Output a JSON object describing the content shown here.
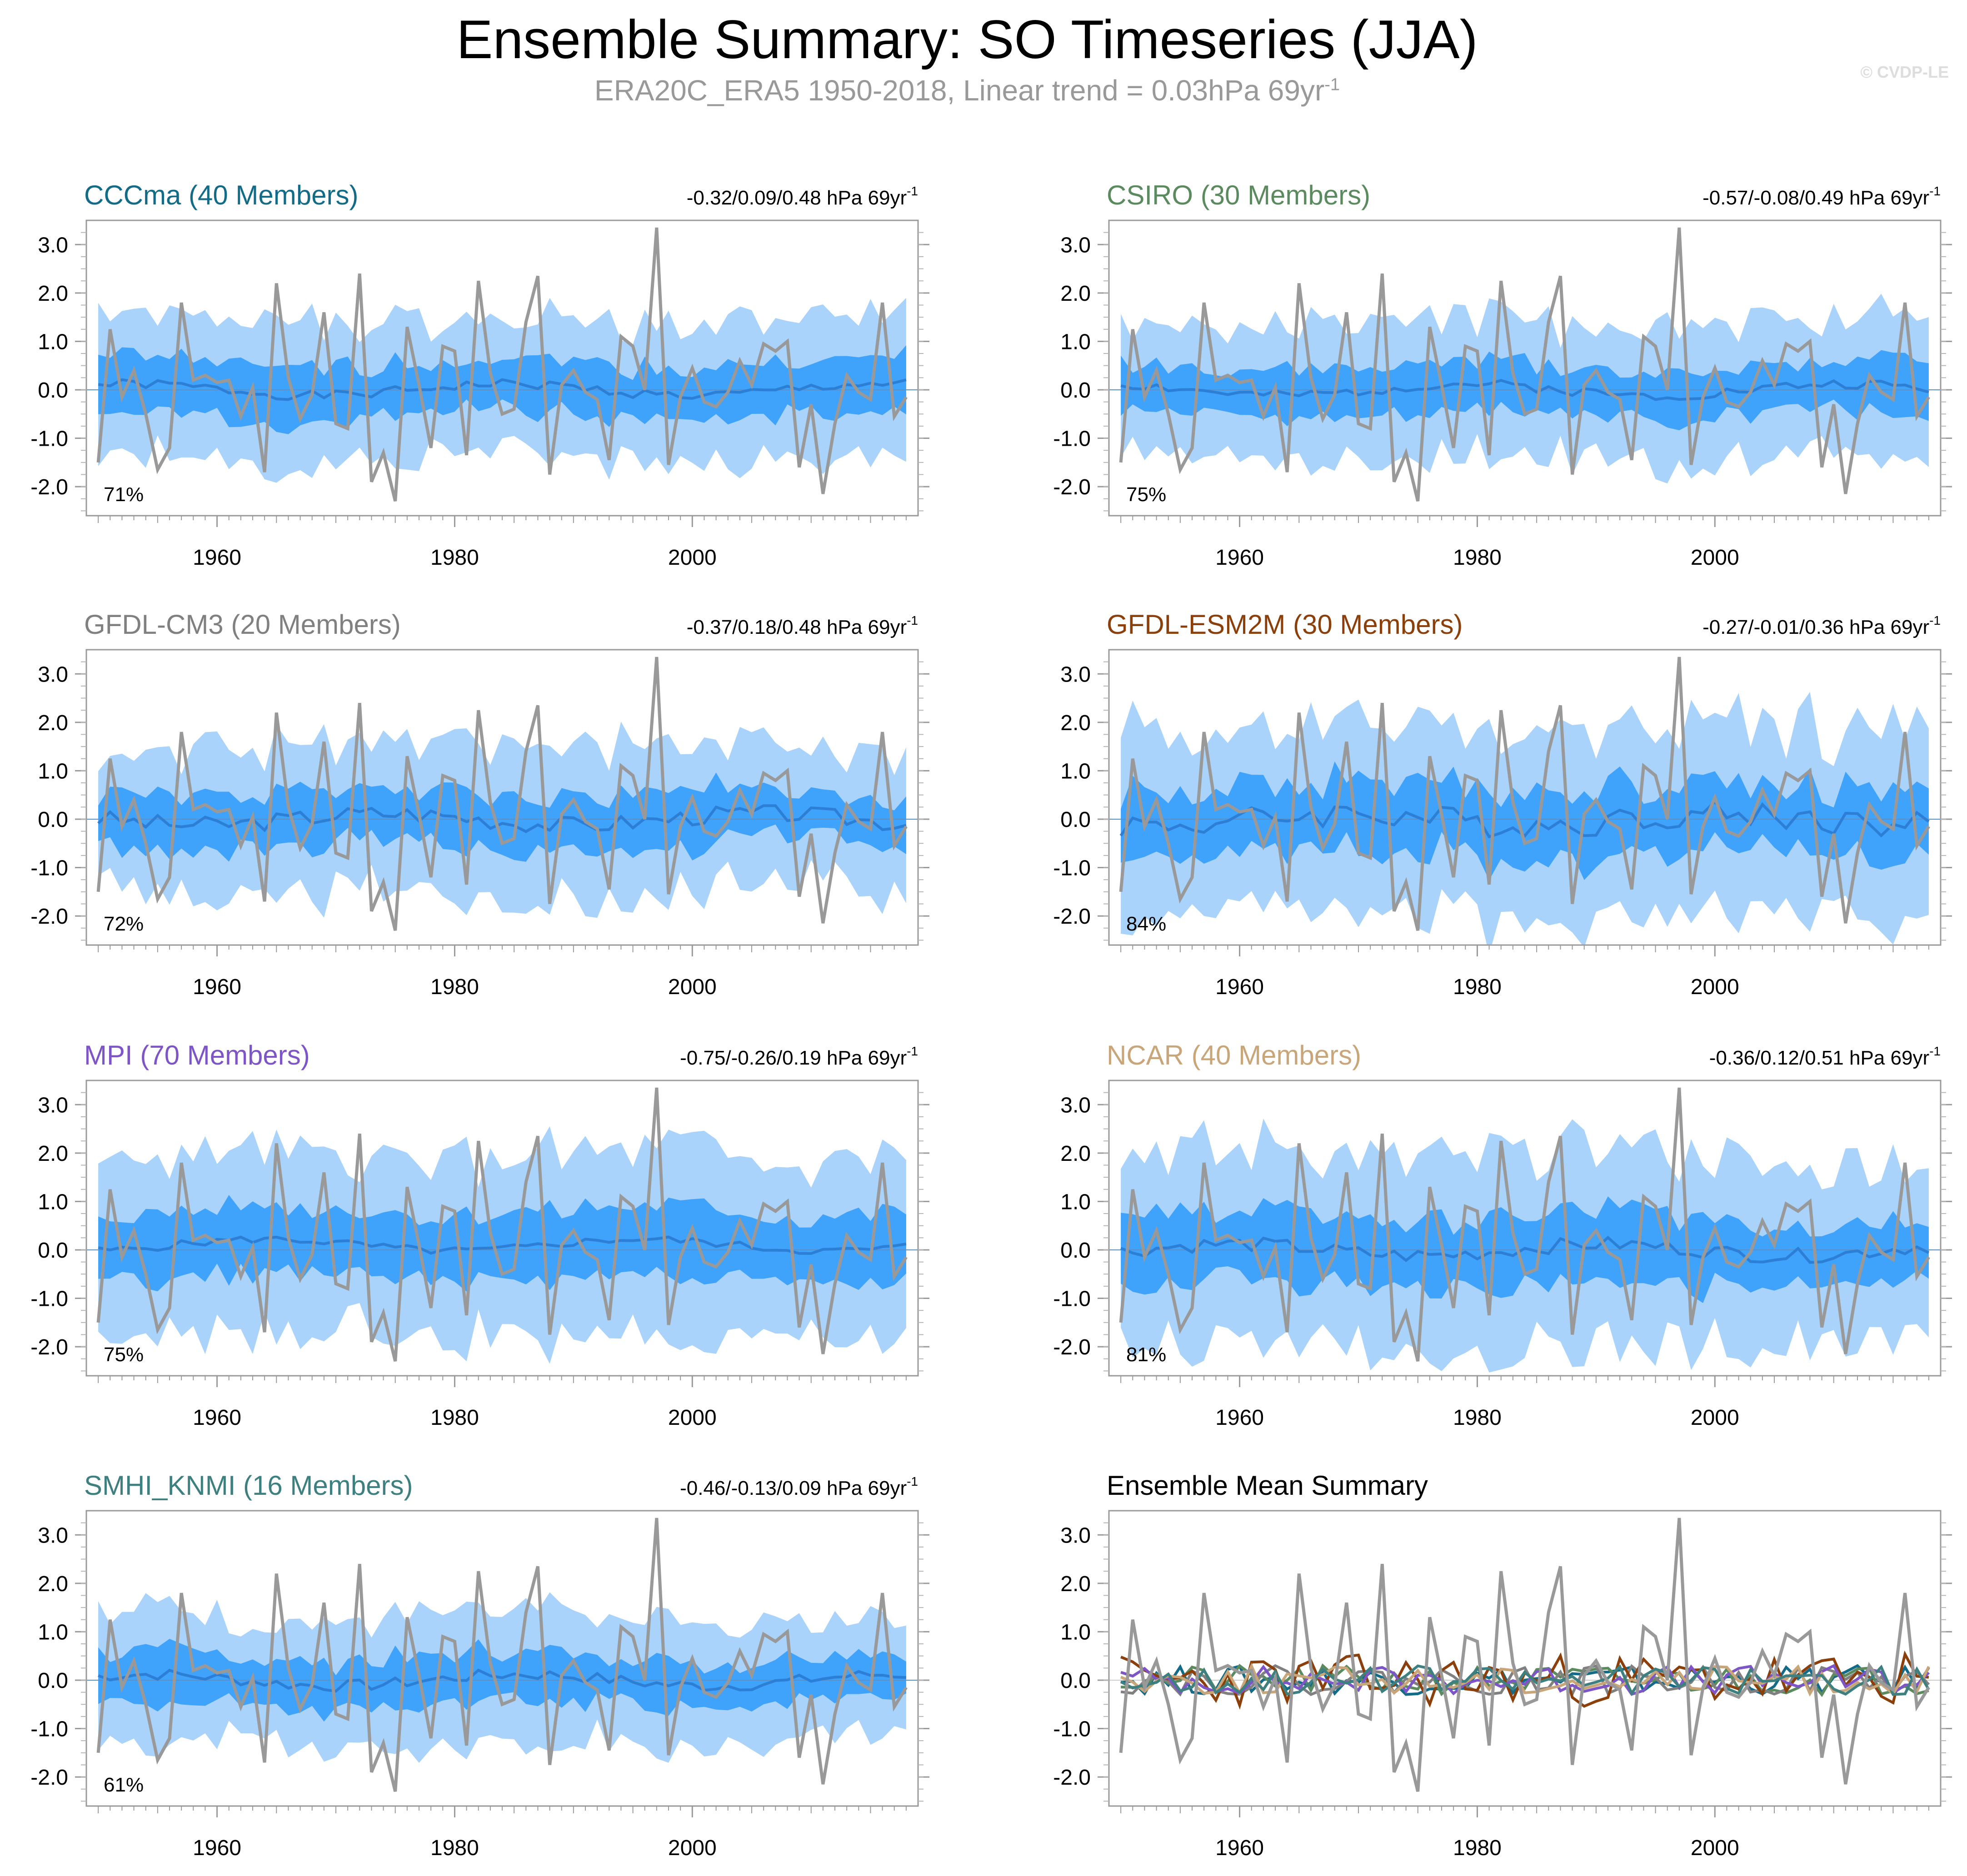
{
  "title": "Ensemble Summary: SO Timeseries (JJA)",
  "subtitle": "ERA20C_ERA5 1950-2018, Linear trend = 0.03hPa 69yr",
  "subtitle_sup": "-1",
  "watermark": "© CVDP-LE",
  "colors": {
    "obs": "#999999",
    "band_outer": "#a9d3fb",
    "band_inner": "#3fa2fb",
    "ens_mean": "#2c7fd4"
  },
  "chart_data": [
    {
      "type": "line",
      "name": "CCCma",
      "title": "CCCma (40 Members)",
      "title_color": "#136b87",
      "trend": "-0.32/0.09/0.48 hPa 69yr",
      "trend_sup": "-1",
      "pct": "71%",
      "ylim": [
        -2.6,
        3.5
      ],
      "xlim": [
        1949,
        2019
      ],
      "yticks": [
        "3.0",
        "2.0",
        "1.0",
        "0.0",
        "-1.0",
        "-2.0"
      ],
      "xticks": [
        "1960",
        "1980",
        "2000"
      ],
      "seed": 1,
      "level": 0.0,
      "amp": 0.1,
      "inner": 0.55,
      "outer": 1.05
    },
    {
      "type": "line",
      "name": "CSIRO",
      "title": "CSIRO (30 Members)",
      "title_color": "#5a8a5e",
      "trend": "-0.57/-0.08/0.49 hPa 69yr",
      "trend_sup": "-1",
      "pct": "75%",
      "ylim": [
        -2.6,
        3.5
      ],
      "xlim": [
        1949,
        2019
      ],
      "yticks": [
        "3.0",
        "2.0",
        "1.0",
        "0.0",
        "-1.0",
        "-2.0"
      ],
      "xticks": [
        "1960",
        "1980",
        "2000"
      ],
      "seed": 2,
      "level": 0.0,
      "amp": 0.1,
      "inner": 0.5,
      "outer": 1.05
    },
    {
      "type": "line",
      "name": "GFDL-CM3",
      "title": "GFDL-CM3 (20 Members)",
      "title_color": "#808080",
      "trend": "-0.37/0.18/0.48 hPa 69yr",
      "trend_sup": "-1",
      "pct": "72%",
      "ylim": [
        -2.6,
        3.5
      ],
      "xlim": [
        1949,
        2019
      ],
      "yticks": [
        "3.0",
        "2.0",
        "1.0",
        "0.0",
        "-1.0",
        "-2.0"
      ],
      "xticks": [
        "1960",
        "1980",
        "2000"
      ],
      "seed": 3,
      "level": 0.0,
      "amp": 0.18,
      "inner": 0.55,
      "outer": 1.15
    },
    {
      "type": "line",
      "name": "GFDL-ESM2M",
      "title": "GFDL-ESM2M (30 Members)",
      "title_color": "#8b3f0b",
      "trend": "-0.27/-0.01/0.36 hPa 69yr",
      "trend_sup": "-1",
      "pct": "84%",
      "ylim": [
        -2.6,
        3.5
      ],
      "xlim": [
        1949,
        2019
      ],
      "yticks": [
        "3.0",
        "2.0",
        "1.0",
        "0.0",
        "-1.0",
        "-2.0"
      ],
      "xticks": [
        "1960",
        "1980",
        "2000"
      ],
      "seed": 4,
      "level": 0.0,
      "amp": 0.28,
      "inner": 0.7,
      "outer": 1.45
    },
    {
      "type": "line",
      "name": "MPI",
      "title": "MPI (70 Members)",
      "title_color": "#7d55c7",
      "trend": "-0.75/-0.26/0.19 hPa 69yr",
      "trend_sup": "-1",
      "pct": "75%",
      "ylim": [
        -2.6,
        3.5
      ],
      "xlim": [
        1949,
        2019
      ],
      "yticks": [
        "3.0",
        "2.0",
        "1.0",
        "0.0",
        "-1.0",
        "-2.0"
      ],
      "xticks": [
        "1960",
        "1980",
        "2000"
      ],
      "seed": 5,
      "level": 0.1,
      "amp": 0.08,
      "inner": 0.7,
      "outer": 1.35
    },
    {
      "type": "line",
      "name": "NCAR",
      "title": "NCAR (40 Members)",
      "title_color": "#c9a57a",
      "trend": "-0.36/0.12/0.51 hPa 69yr",
      "trend_sup": "-1",
      "pct": "81%",
      "ylim": [
        -2.6,
        3.5
      ],
      "xlim": [
        1949,
        2019
      ],
      "yticks": [
        "3.0",
        "2.0",
        "1.0",
        "0.0",
        "-1.0",
        "-2.0"
      ],
      "xticks": [
        "1960",
        "1980",
        "2000"
      ],
      "seed": 6,
      "level": 0.0,
      "amp": 0.15,
      "inner": 0.7,
      "outer": 1.5
    },
    {
      "type": "line",
      "name": "SMHI_KNMI",
      "title": "SMHI_KNMI (16 Members)",
      "title_color": "#3e7f7f",
      "trend": "-0.46/-0.13/0.09 hPa 69yr",
      "trend_sup": "-1",
      "pct": "61%",
      "ylim": [
        -2.6,
        3.5
      ],
      "xlim": [
        1949,
        2019
      ],
      "yticks": [
        "3.0",
        "2.0",
        "1.0",
        "0.0",
        "-1.0",
        "-2.0"
      ],
      "xticks": [
        "1960",
        "1980",
        "2000"
      ],
      "seed": 7,
      "level": 0.0,
      "amp": 0.12,
      "inner": 0.5,
      "outer": 0.95
    },
    {
      "type": "line",
      "name": "Ensemble Mean Summary",
      "title": "Ensemble Mean Summary",
      "title_color": "#000000",
      "trend": "",
      "trend_sup": "",
      "pct": "",
      "ylim": [
        -2.6,
        3.5
      ],
      "xlim": [
        1949,
        2019
      ],
      "yticks": [
        "3.0",
        "2.0",
        "1.0",
        "0.0",
        "-1.0",
        "-2.0"
      ],
      "xticks": [
        "1960",
        "1980",
        "2000"
      ],
      "summary": true,
      "member_colors": [
        "#136b87",
        "#5a8a5e",
        "#808080",
        "#8b3f0b",
        "#7d55c7",
        "#c9a57a",
        "#3e7f7f"
      ]
    }
  ],
  "obs": {
    "name": "ERA20C_ERA5",
    "years": [
      1950,
      1951,
      1952,
      1953,
      1954,
      1955,
      1956,
      1957,
      1958,
      1959,
      1960,
      1961,
      1962,
      1963,
      1964,
      1965,
      1966,
      1967,
      1968,
      1969,
      1970,
      1971,
      1972,
      1973,
      1974,
      1975,
      1976,
      1977,
      1978,
      1979,
      1980,
      1981,
      1982,
      1983,
      1984,
      1985,
      1986,
      1987,
      1988,
      1989,
      1990,
      1991,
      1992,
      1993,
      1994,
      1995,
      1996,
      1997,
      1998,
      1999,
      2000,
      2001,
      2002,
      2003,
      2004,
      2005,
      2006,
      2007,
      2008,
      2009,
      2010,
      2011,
      2012,
      2013,
      2014,
      2015,
      2016,
      2017,
      2018
    ],
    "values": [
      -1.5,
      1.25,
      -0.15,
      0.4,
      -0.5,
      -1.65,
      -1.2,
      1.8,
      0.2,
      0.3,
      0.15,
      0.2,
      -0.55,
      0.05,
      -1.7,
      2.2,
      0.25,
      -0.6,
      -0.1,
      1.6,
      -0.7,
      -0.8,
      2.4,
      -1.9,
      -1.3,
      -2.3,
      1.3,
      0.1,
      -1.2,
      0.9,
      0.8,
      -1.35,
      2.25,
      0.35,
      -0.5,
      -0.4,
      1.4,
      2.35,
      -1.75,
      0.1,
      0.4,
      -0.05,
      -0.2,
      -1.45,
      1.1,
      0.9,
      0.0,
      3.35,
      -1.55,
      -0.15,
      0.45,
      -0.25,
      -0.35,
      -0.05,
      0.6,
      0.1,
      0.95,
      0.8,
      1.0,
      -1.6,
      -0.3,
      -2.15,
      -0.7,
      0.3,
      -0.05,
      -0.2,
      1.8,
      -0.55,
      -0.15
    ]
  }
}
